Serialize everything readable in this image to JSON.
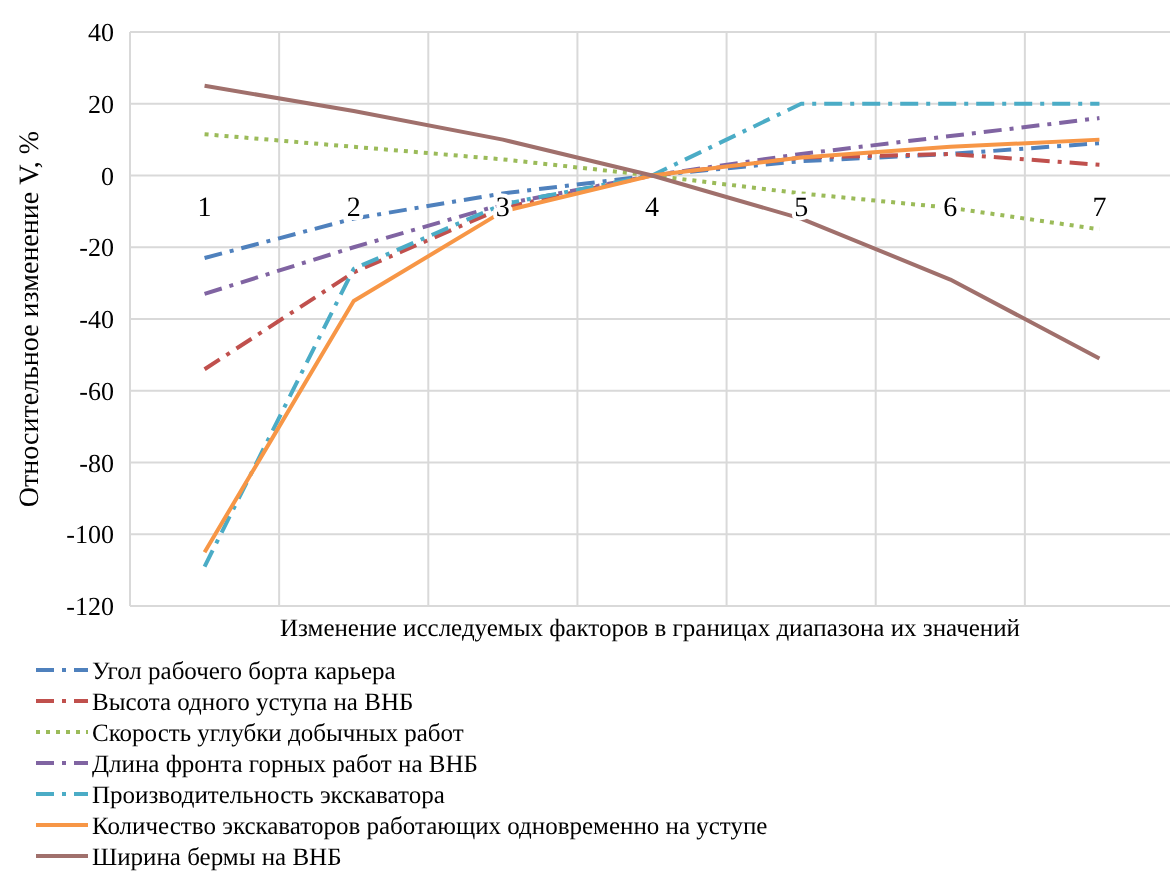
{
  "chart_data": {
    "type": "line",
    "ylabel": "Относительное изменение V, %",
    "xlabel": "Изменение исследуемых факторов в границах диапазона их значений",
    "categories": [
      "1",
      "2",
      "3",
      "4",
      "5",
      "6",
      "7"
    ],
    "ylim": [
      -120,
      40
    ],
    "yticks": [
      -120,
      -100,
      -80,
      -60,
      -40,
      -20,
      0,
      20,
      40
    ],
    "grid": true,
    "legend": "bottom",
    "series": [
      {
        "name": "Угол рабочего борта карьера",
        "color": "#4f81bd",
        "line_style": "dashed",
        "values": [
          -23,
          -12,
          -5,
          0,
          4,
          6,
          9
        ]
      },
      {
        "name": "Высота одного уступа на ВНБ",
        "color": "#c0504d",
        "line_style": "dashed",
        "values": [
          -54,
          -27,
          -9,
          0,
          5,
          6,
          3
        ]
      },
      {
        "name": "Скорость углубки добычных работ",
        "color": "#9bbb59",
        "line_style": "dotted",
        "values": [
          11.5,
          8,
          4.5,
          0,
          -5,
          -9,
          -15
        ]
      },
      {
        "name": "Длина фронта горных работ на ВНБ",
        "color": "#8064a2",
        "line_style": "dashed",
        "values": [
          -33,
          -20,
          -8,
          0,
          6,
          11,
          16
        ]
      },
      {
        "name": "Производительность экскаватора",
        "color": "#4bacc6",
        "line_style": "dashed",
        "values": [
          -109,
          -26,
          -8,
          0,
          20,
          20,
          20
        ]
      },
      {
        "name": "Количество экскаваторов работающих одновременно на уступе",
        "color": "#f79646",
        "line_style": "solid",
        "values": [
          -105,
          -35,
          -10,
          0,
          5,
          8,
          10
        ]
      },
      {
        "name": "Ширина бермы на ВНБ",
        "color": "#a0706c",
        "line_style": "solid",
        "values": [
          25,
          18,
          10,
          0,
          -12,
          -29,
          -51
        ]
      }
    ]
  }
}
